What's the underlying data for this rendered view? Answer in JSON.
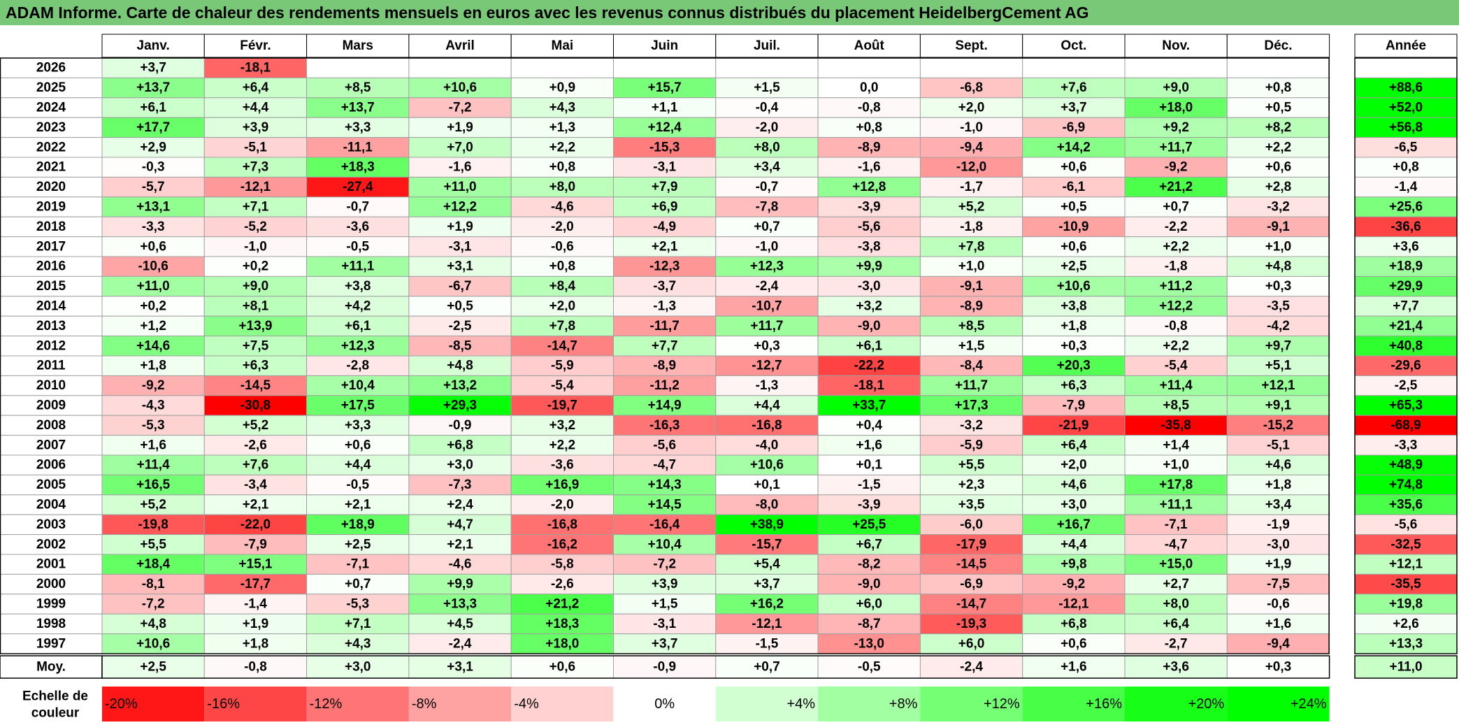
{
  "title": "ADAM Informe. Carte de chaleur des rendements mensuels en euros avec les revenus connus distribués du placement HeidelbergCement AG",
  "chart_data": {
    "type": "heatmap",
    "months": [
      "Janv.",
      "Févr.",
      "Mars",
      "Avril",
      "Mai",
      "Juin",
      "Juil.",
      "Août",
      "Sept.",
      "Oct.",
      "Nov.",
      "Déc."
    ],
    "annual_header": "Année",
    "average_label": "Moy.",
    "scale_label": "Echelle de couleur",
    "years": [
      "2026",
      "2025",
      "2024",
      "2023",
      "2022",
      "2021",
      "2020",
      "2019",
      "2018",
      "2017",
      "2016",
      "2015",
      "2014",
      "2013",
      "2012",
      "2011",
      "2010",
      "2009",
      "2008",
      "2007",
      "2006",
      "2005",
      "2004",
      "2003",
      "2002",
      "2001",
      "2000",
      "1999",
      "1998",
      "1997"
    ],
    "values": [
      [
        "+3,7",
        "-18,1",
        "",
        "",
        "",
        "",
        "",
        "",
        "",
        "",
        "",
        ""
      ],
      [
        "+13,7",
        "+6,4",
        "+8,5",
        "+10,6",
        "+0,9",
        "+15,7",
        "+1,5",
        "0,0",
        "-6,8",
        "+7,6",
        "+9,0",
        "+0,8"
      ],
      [
        "+6,1",
        "+4,4",
        "+13,7",
        "-7,2",
        "+4,3",
        "+1,1",
        "-0,4",
        "-0,8",
        "+2,0",
        "+3,7",
        "+18,0",
        "+0,5"
      ],
      [
        "+17,7",
        "+3,9",
        "+3,3",
        "+1,9",
        "+1,3",
        "+12,4",
        "-2,0",
        "+0,8",
        "-1,0",
        "-6,9",
        "+9,2",
        "+8,2"
      ],
      [
        "+2,9",
        "-5,1",
        "-11,1",
        "+7,0",
        "+2,2",
        "-15,3",
        "+8,0",
        "-8,9",
        "-9,4",
        "+14,2",
        "+11,7",
        "+2,2"
      ],
      [
        "-0,3",
        "+7,3",
        "+18,3",
        "-1,6",
        "+0,8",
        "-3,1",
        "+3,4",
        "-1,6",
        "-12,0",
        "+0,6",
        "-9,2",
        "+0,6"
      ],
      [
        "-5,7",
        "-12,1",
        "-27,4",
        "+11,0",
        "+8,0",
        "+7,9",
        "-0,7",
        "+12,8",
        "-1,7",
        "-6,1",
        "+21,2",
        "+2,8"
      ],
      [
        "+13,1",
        "+7,1",
        "-0,7",
        "+12,2",
        "-4,6",
        "+6,9",
        "-7,8",
        "-3,9",
        "+5,2",
        "+0,5",
        "+0,7",
        "-3,2"
      ],
      [
        "-3,3",
        "-5,2",
        "-3,6",
        "+1,9",
        "-2,0",
        "-4,9",
        "+0,7",
        "-5,6",
        "-1,8",
        "-10,9",
        "-2,2",
        "-9,1"
      ],
      [
        "+0,6",
        "-1,0",
        "-0,5",
        "-3,1",
        "-0,6",
        "+2,1",
        "-1,0",
        "-3,8",
        "+7,8",
        "+0,6",
        "+2,2",
        "+1,0"
      ],
      [
        "-10,6",
        "+0,2",
        "+11,1",
        "+3,1",
        "+0,8",
        "-12,3",
        "+12,3",
        "+9,9",
        "+1,0",
        "+2,5",
        "-1,8",
        "+4,8"
      ],
      [
        "+11,0",
        "+9,0",
        "+3,8",
        "-6,7",
        "+8,4",
        "-3,7",
        "-2,4",
        "-3,0",
        "-9,1",
        "+10,6",
        "+11,2",
        "+0,3"
      ],
      [
        "+0,2",
        "+8,1",
        "+4,2",
        "+0,5",
        "+2,0",
        "-1,3",
        "-10,7",
        "+3,2",
        "-8,9",
        "+3,8",
        "+12,2",
        "-3,5"
      ],
      [
        "+1,2",
        "+13,9",
        "+6,1",
        "-2,5",
        "+7,8",
        "-11,7",
        "+11,7",
        "-9,0",
        "+8,5",
        "+1,8",
        "-0,8",
        "-4,2"
      ],
      [
        "+14,6",
        "+7,5",
        "+12,3",
        "-8,5",
        "-14,7",
        "+7,7",
        "+0,3",
        "+6,1",
        "+1,5",
        "+0,3",
        "+2,2",
        "+9,7"
      ],
      [
        "+1,8",
        "+6,3",
        "-2,8",
        "+4,8",
        "-5,9",
        "-8,9",
        "-12,7",
        "-22,2",
        "-8,4",
        "+20,3",
        "-5,4",
        "+5,1"
      ],
      [
        "-9,2",
        "-14,5",
        "+10,4",
        "+13,2",
        "-5,4",
        "-11,2",
        "-1,3",
        "-18,1",
        "+11,7",
        "+6,3",
        "+11,4",
        "+12,1"
      ],
      [
        "-4,3",
        "-30,8",
        "+17,5",
        "+29,3",
        "-19,7",
        "+14,9",
        "+4,4",
        "+33,7",
        "+17,3",
        "-7,9",
        "+8,5",
        "+9,1"
      ],
      [
        "-5,3",
        "+5,2",
        "+3,3",
        "-0,9",
        "+3,2",
        "-16,3",
        "-16,8",
        "+0,4",
        "-3,2",
        "-21,9",
        "-35,8",
        "-15,2"
      ],
      [
        "+1,6",
        "-2,6",
        "+0,6",
        "+6,8",
        "+2,2",
        "-5,6",
        "-4,0",
        "+1,6",
        "-5,9",
        "+6,4",
        "+1,4",
        "-5,1"
      ],
      [
        "+11,4",
        "+7,6",
        "+4,4",
        "+3,0",
        "-3,6",
        "-4,7",
        "+10,6",
        "+0,1",
        "+5,5",
        "+2,0",
        "+1,0",
        "+4,6"
      ],
      [
        "+16,5",
        "-3,4",
        "-0,5",
        "-7,3",
        "+16,9",
        "+14,3",
        "+0,1",
        "-1,5",
        "+2,3",
        "+4,6",
        "+17,8",
        "+1,8"
      ],
      [
        "+5,2",
        "+2,1",
        "+2,1",
        "+2,4",
        "-2,0",
        "+14,5",
        "-8,0",
        "-3,9",
        "+3,5",
        "+3,0",
        "+11,1",
        "+3,4"
      ],
      [
        "-19,8",
        "-22,0",
        "+18,9",
        "+4,7",
        "-16,8",
        "-16,4",
        "+38,9",
        "+25,5",
        "-6,0",
        "+16,7",
        "-7,1",
        "-1,9"
      ],
      [
        "+5,5",
        "-7,9",
        "+2,5",
        "+2,1",
        "-16,2",
        "+10,4",
        "-15,7",
        "+6,7",
        "-17,9",
        "+4,4",
        "-4,7",
        "-3,0"
      ],
      [
        "+18,4",
        "+15,1",
        "-7,1",
        "-4,6",
        "-5,8",
        "-7,2",
        "+5,4",
        "-8,2",
        "-14,5",
        "+9,8",
        "+15,0",
        "+1,9"
      ],
      [
        "-8,1",
        "-17,7",
        "+0,7",
        "+9,9",
        "-2,6",
        "+3,9",
        "+3,7",
        "-9,0",
        "-6,9",
        "-9,2",
        "+2,7",
        "-7,5"
      ],
      [
        "-7,2",
        "-1,4",
        "-5,3",
        "+13,3",
        "+21,2",
        "+1,5",
        "+16,2",
        "+6,0",
        "-14,7",
        "-12,1",
        "+8,0",
        "-0,6"
      ],
      [
        "+4,8",
        "+1,9",
        "+7,1",
        "+4,5",
        "+18,3",
        "-3,1",
        "-12,1",
        "-8,7",
        "-19,3",
        "+6,8",
        "+6,4",
        "+1,6"
      ],
      [
        "+10,6",
        "+1,8",
        "+4,3",
        "-2,4",
        "+18,0",
        "+3,7",
        "-1,5",
        "-13,0",
        "+6,0",
        "+0,6",
        "-2,7",
        "-9,4"
      ]
    ],
    "annual": [
      "",
      "+88,6",
      "+52,0",
      "+56,8",
      "-6,5",
      "+0,8",
      "-1,4",
      "+25,6",
      "-36,6",
      "+3,6",
      "+18,9",
      "+29,9",
      "+7,7",
      "+21,4",
      "+40,8",
      "-29,6",
      "-2,5",
      "+65,3",
      "-68,9",
      "-3,3",
      "+48,9",
      "+74,8",
      "+35,6",
      "-5,6",
      "-32,5",
      "+12,1",
      "-35,5",
      "+19,8",
      "+2,6",
      "+13,3"
    ],
    "averages": [
      "+2,5",
      "-0,8",
      "+3,0",
      "+3,1",
      "+0,6",
      "-0,9",
      "+0,7",
      "-0,5",
      "-2,4",
      "+1,6",
      "+3,6",
      "+0,3"
    ],
    "average_annual": "+11,0",
    "scale": [
      "-20%",
      "-16%",
      "-12%",
      "-8%",
      "-4%",
      "0%",
      "+4%",
      "+8%",
      "+12%",
      "+16%",
      "+20%",
      "+24%"
    ],
    "colors": {
      "title_bg": "#78c878",
      "negative_max": "#ff0000",
      "neutral": "#ffffff",
      "positive_max": "#00ff00",
      "grid": "#a0a0a0",
      "border": "#000000"
    }
  }
}
